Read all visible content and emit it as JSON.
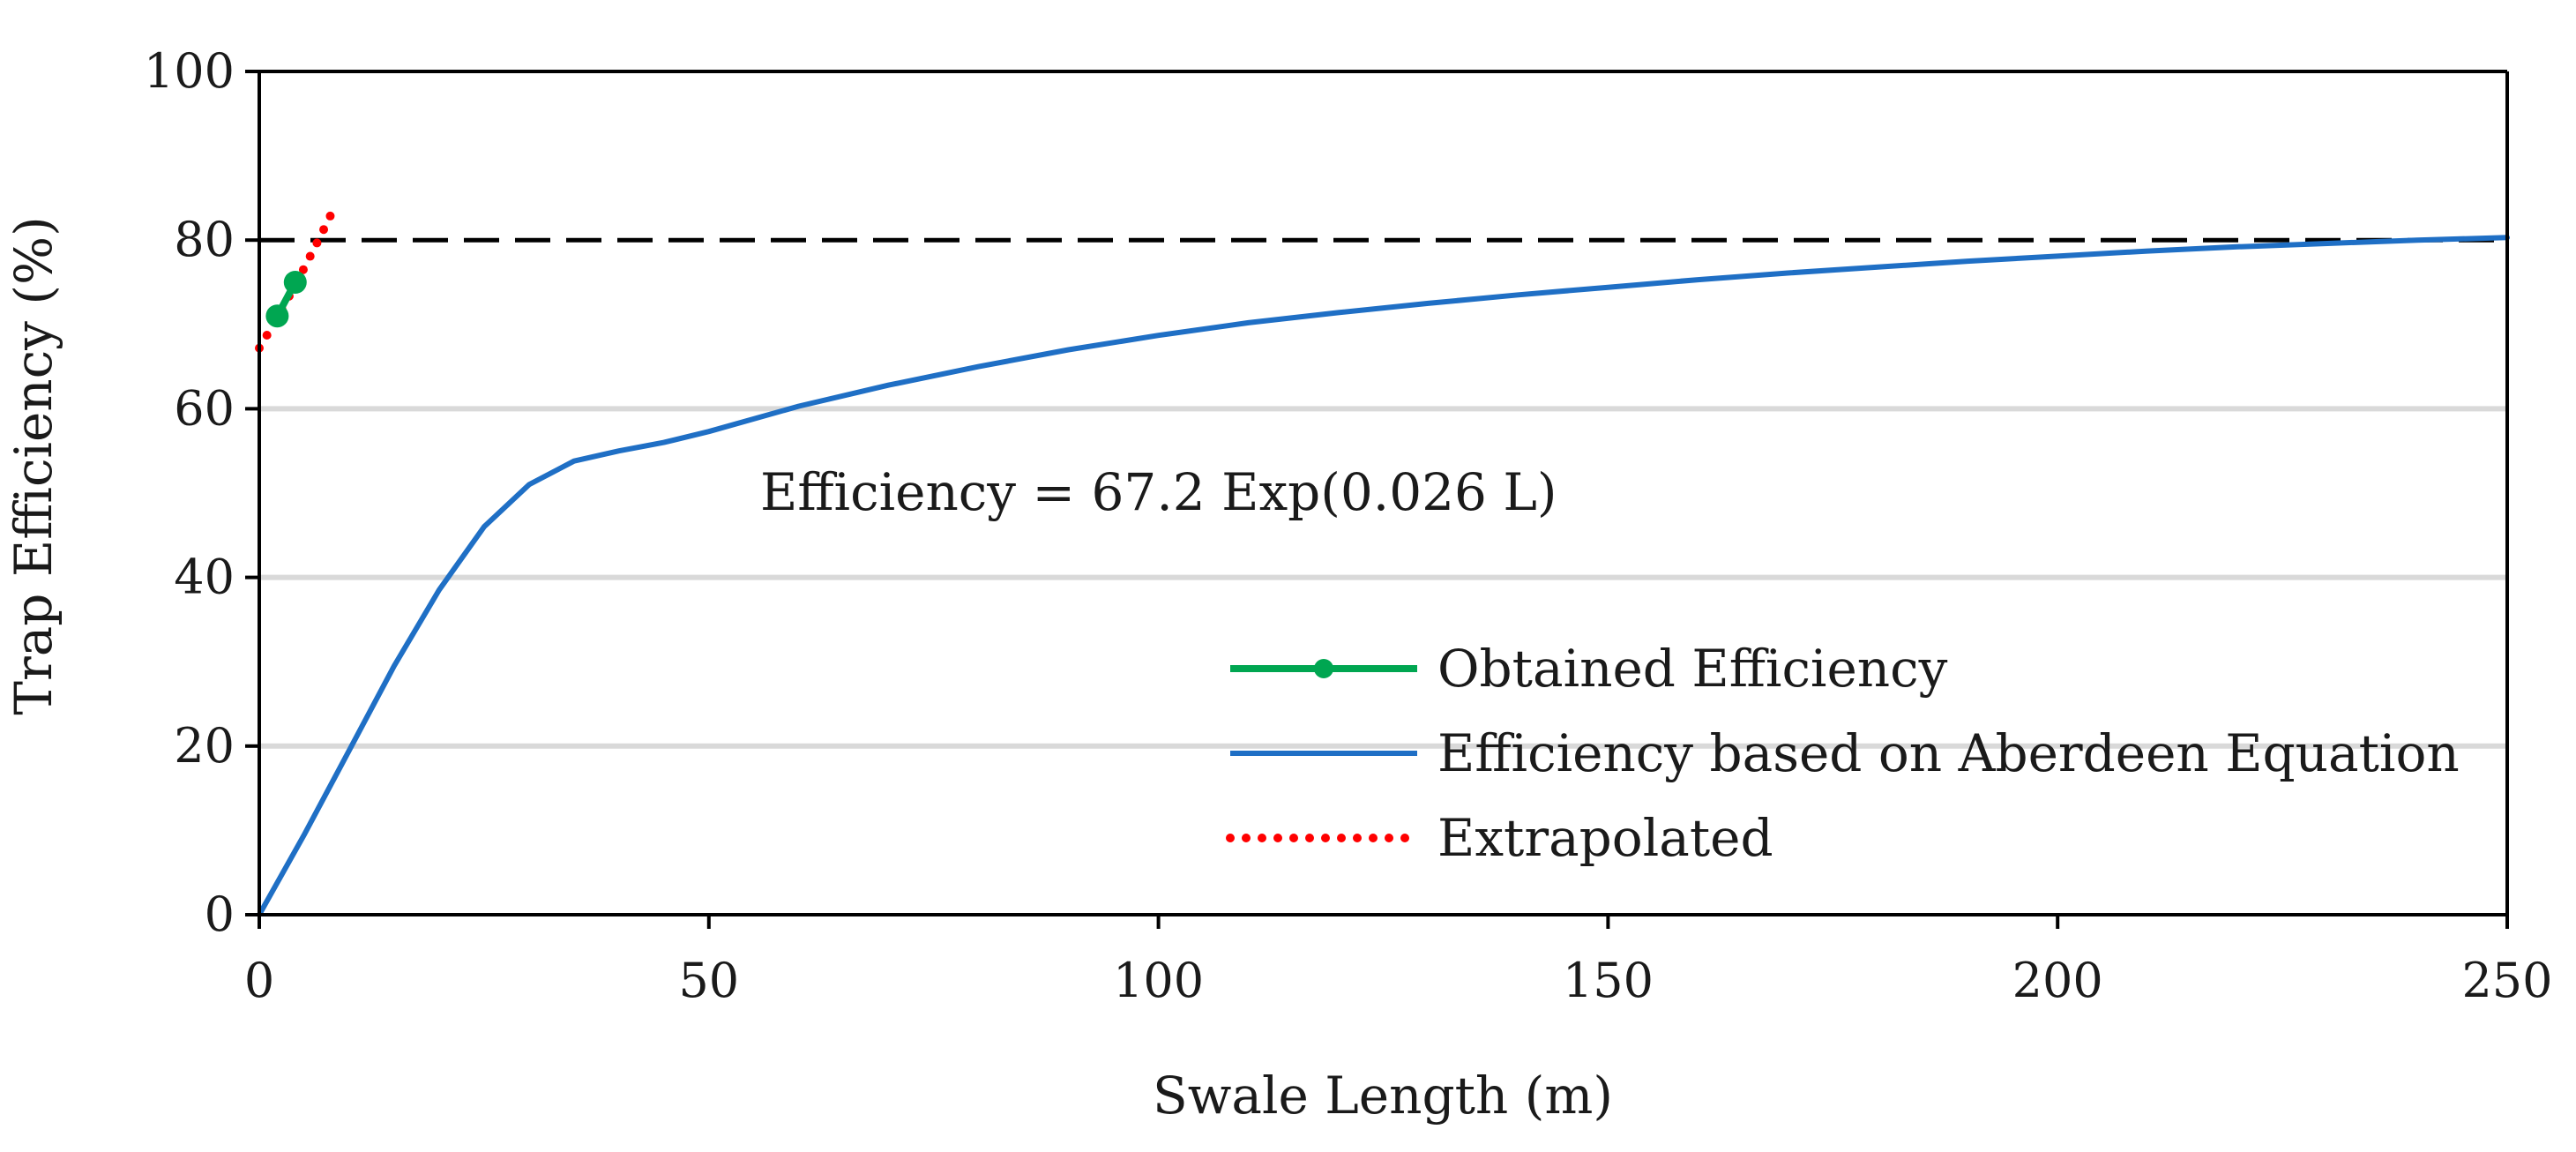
{
  "chart_data": {
    "type": "line",
    "title": "",
    "xlabel": "Swale Length  (m)",
    "ylabel": "Trap Efficiency (%)",
    "xlim": [
      0,
      250
    ],
    "ylim": [
      0,
      100
    ],
    "x_ticks": [
      0,
      50,
      100,
      150,
      200,
      250
    ],
    "y_ticks": [
      0,
      20,
      40,
      60,
      80,
      100
    ],
    "grid": "horizontal",
    "reference_line": {
      "y": 80,
      "style": "dashed",
      "color": "#000000"
    },
    "annotation": "Efficiency = 67.2 Exp(0.026 L)",
    "series": [
      {
        "name": "Obtained Efficiency",
        "color": "#00a651",
        "style": "solid-markers",
        "x": [
          2,
          4
        ],
        "y": [
          71,
          75
        ]
      },
      {
        "name": "Efficiency based on Aberdeen Equation",
        "color": "#1f6fc5",
        "style": "solid",
        "x": [
          0,
          5,
          10,
          15,
          20,
          25,
          30,
          35,
          40,
          45,
          50,
          60,
          70,
          80,
          90,
          100,
          110,
          120,
          130,
          140,
          150,
          160,
          170,
          180,
          190,
          200,
          210,
          220,
          230,
          240,
          250
        ],
        "y": [
          0,
          9.5,
          19.5,
          29.5,
          38.5,
          46,
          51,
          53.8,
          55,
          56,
          57.3,
          60.3,
          62.8,
          65,
          67,
          68.7,
          70.2,
          71.4,
          72.5,
          73.5,
          74.4,
          75.3,
          76.1,
          76.8,
          77.5,
          78.1,
          78.7,
          79.2,
          79.6,
          80,
          80.3
        ]
      },
      {
        "name": "Extrapolated",
        "color": "#ff0000",
        "style": "dotted",
        "x": [
          0,
          1,
          2,
          3,
          4,
          5,
          6,
          7,
          8,
          8.6
        ],
        "y": [
          67.2,
          69,
          70.8,
          72.7,
          74.7,
          76.7,
          78.8,
          80.9,
          83.1,
          84.4
        ]
      }
    ]
  }
}
